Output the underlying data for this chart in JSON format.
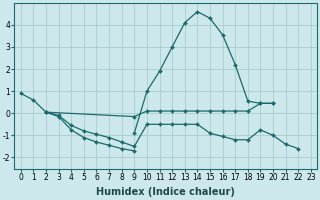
{
  "xlabel": "Humidex (Indice chaleur)",
  "background_color": "#cce8ec",
  "grid_color": "#aacccc",
  "line_color": "#1a6b6b",
  "line_configs": [
    {
      "x": [
        0,
        1,
        2,
        3,
        4,
        5,
        6,
        7,
        8,
        9
      ],
      "y": [
        0.9,
        0.6,
        0.05,
        -0.15,
        -0.75,
        -1.1,
        -1.3,
        -1.45,
        -1.6,
        -1.7
      ]
    },
    {
      "x": [
        2,
        3,
        4,
        5,
        6,
        7,
        8,
        9,
        10,
        11,
        12,
        13,
        14,
        15,
        16,
        17,
        18,
        19,
        20,
        21,
        22
      ],
      "y": [
        0.05,
        -0.1,
        -0.55,
        -0.8,
        -0.95,
        -1.1,
        -1.3,
        -1.5,
        -0.5,
        -0.5,
        -0.5,
        -0.5,
        -0.5,
        -0.9,
        -1.05,
        -1.2,
        -1.2,
        -0.75,
        -1.0,
        -1.4,
        -1.6
      ]
    },
    {
      "x": [
        2,
        9,
        10,
        11,
        12,
        13,
        14,
        15,
        16,
        17,
        18,
        19,
        20
      ],
      "y": [
        0.05,
        -0.15,
        0.1,
        0.1,
        0.1,
        0.1,
        0.1,
        0.1,
        0.1,
        0.1,
        0.1,
        0.45,
        0.45
      ]
    },
    {
      "x": [
        9,
        10,
        11,
        12,
        13,
        14,
        15,
        16,
        17,
        18,
        19,
        20
      ],
      "y": [
        -0.9,
        1.0,
        1.9,
        3.0,
        4.1,
        4.6,
        4.3,
        3.55,
        2.2,
        0.55,
        0.45,
        0.45
      ]
    }
  ],
  "xlim": [
    -0.5,
    23.5
  ],
  "ylim": [
    -2.5,
    5.0
  ],
  "yticks": [
    -2,
    -1,
    0,
    1,
    2,
    3,
    4
  ],
  "xticks": [
    0,
    1,
    2,
    3,
    4,
    5,
    6,
    7,
    8,
    9,
    10,
    11,
    12,
    13,
    14,
    15,
    16,
    17,
    18,
    19,
    20,
    21,
    22,
    23
  ],
  "tick_fontsize": 5.5,
  "label_fontsize": 7
}
